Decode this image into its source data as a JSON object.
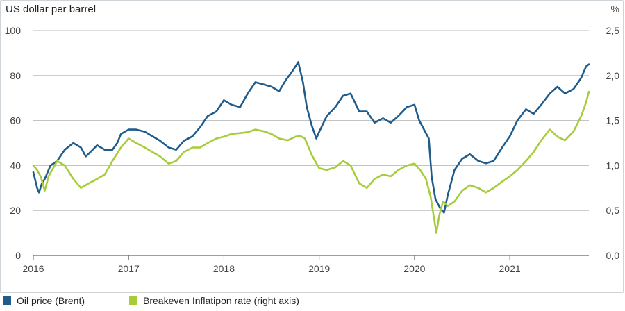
{
  "chart_data": {
    "type": "line",
    "title": "",
    "ylabel_left": "US dollar per barrel",
    "ylabel_right": "%",
    "xlim": [
      2016.0,
      2021.83
    ],
    "ylim_left": [
      0,
      100
    ],
    "ylim_right": [
      0,
      2.5
    ],
    "x_ticks": [
      "2016",
      "2017",
      "2018",
      "2019",
      "2020",
      "2021"
    ],
    "y_ticks_left": [
      "0",
      "20",
      "40",
      "60",
      "80",
      "100"
    ],
    "y_ticks_right": [
      "0,0",
      "0,5",
      "1,0",
      "1,5",
      "2,0",
      "2,5"
    ],
    "grid": true,
    "legend_position": "bottom",
    "series": [
      {
        "name": "Oil price (Brent)",
        "axis": "left",
        "color": "#1f5c8b",
        "points": [
          [
            2016.0,
            37
          ],
          [
            2016.04,
            30
          ],
          [
            2016.06,
            28
          ],
          [
            2016.09,
            32
          ],
          [
            2016.12,
            34
          ],
          [
            2016.18,
            40
          ],
          [
            2016.25,
            42
          ],
          [
            2016.33,
            47
          ],
          [
            2016.42,
            50
          ],
          [
            2016.5,
            48
          ],
          [
            2016.55,
            44
          ],
          [
            2016.6,
            46
          ],
          [
            2016.67,
            49
          ],
          [
            2016.75,
            47
          ],
          [
            2016.83,
            47
          ],
          [
            2016.88,
            50
          ],
          [
            2016.92,
            54
          ],
          [
            2017.0,
            56
          ],
          [
            2017.08,
            56
          ],
          [
            2017.17,
            55
          ],
          [
            2017.25,
            53
          ],
          [
            2017.33,
            51
          ],
          [
            2017.42,
            48
          ],
          [
            2017.5,
            47
          ],
          [
            2017.58,
            51
          ],
          [
            2017.67,
            53
          ],
          [
            2017.75,
            57
          ],
          [
            2017.83,
            62
          ],
          [
            2017.92,
            64
          ],
          [
            2018.0,
            69
          ],
          [
            2018.08,
            67
          ],
          [
            2018.17,
            66
          ],
          [
            2018.25,
            72
          ],
          [
            2018.33,
            77
          ],
          [
            2018.42,
            76
          ],
          [
            2018.5,
            75
          ],
          [
            2018.58,
            73
          ],
          [
            2018.65,
            78
          ],
          [
            2018.72,
            82
          ],
          [
            2018.78,
            86
          ],
          [
            2018.83,
            77
          ],
          [
            2018.87,
            66
          ],
          [
            2018.92,
            58
          ],
          [
            2018.97,
            52
          ],
          [
            2019.0,
            55
          ],
          [
            2019.08,
            62
          ],
          [
            2019.17,
            66
          ],
          [
            2019.25,
            71
          ],
          [
            2019.33,
            72
          ],
          [
            2019.42,
            64
          ],
          [
            2019.5,
            64
          ],
          [
            2019.58,
            59
          ],
          [
            2019.67,
            61
          ],
          [
            2019.75,
            59
          ],
          [
            2019.83,
            62
          ],
          [
            2019.92,
            66
          ],
          [
            2020.0,
            67
          ],
          [
            2020.05,
            60
          ],
          [
            2020.1,
            56
          ],
          [
            2020.15,
            52
          ],
          [
            2020.18,
            35
          ],
          [
            2020.22,
            25
          ],
          [
            2020.27,
            21
          ],
          [
            2020.31,
            19
          ],
          [
            2020.35,
            27
          ],
          [
            2020.42,
            38
          ],
          [
            2020.5,
            43
          ],
          [
            2020.58,
            45
          ],
          [
            2020.67,
            42
          ],
          [
            2020.75,
            41
          ],
          [
            2020.83,
            42
          ],
          [
            2020.92,
            48
          ],
          [
            2021.0,
            53
          ],
          [
            2021.08,
            60
          ],
          [
            2021.17,
            65
          ],
          [
            2021.25,
            63
          ],
          [
            2021.33,
            67
          ],
          [
            2021.42,
            72
          ],
          [
            2021.5,
            75
          ],
          [
            2021.58,
            72
          ],
          [
            2021.67,
            74
          ],
          [
            2021.75,
            79
          ],
          [
            2021.8,
            84
          ],
          [
            2021.83,
            85
          ]
        ]
      },
      {
        "name": "Breakeven Inflatipon rate (right axis)",
        "axis": "right",
        "color": "#a6cc3a",
        "points": [
          [
            2016.0,
            1.0
          ],
          [
            2016.04,
            0.95
          ],
          [
            2016.08,
            0.87
          ],
          [
            2016.12,
            0.72
          ],
          [
            2016.16,
            0.88
          ],
          [
            2016.25,
            1.05
          ],
          [
            2016.33,
            1.0
          ],
          [
            2016.42,
            0.85
          ],
          [
            2016.5,
            0.75
          ],
          [
            2016.58,
            0.8
          ],
          [
            2016.67,
            0.85
          ],
          [
            2016.75,
            0.9
          ],
          [
            2016.83,
            1.05
          ],
          [
            2016.92,
            1.2
          ],
          [
            2017.0,
            1.3
          ],
          [
            2017.08,
            1.25
          ],
          [
            2017.17,
            1.2
          ],
          [
            2017.25,
            1.15
          ],
          [
            2017.33,
            1.1
          ],
          [
            2017.42,
            1.02
          ],
          [
            2017.5,
            1.05
          ],
          [
            2017.58,
            1.15
          ],
          [
            2017.67,
            1.2
          ],
          [
            2017.75,
            1.2
          ],
          [
            2017.83,
            1.25
          ],
          [
            2017.92,
            1.3
          ],
          [
            2018.0,
            1.32
          ],
          [
            2018.08,
            1.35
          ],
          [
            2018.17,
            1.36
          ],
          [
            2018.25,
            1.37
          ],
          [
            2018.33,
            1.4
          ],
          [
            2018.42,
            1.38
          ],
          [
            2018.5,
            1.35
          ],
          [
            2018.58,
            1.3
          ],
          [
            2018.67,
            1.28
          ],
          [
            2018.75,
            1.32
          ],
          [
            2018.8,
            1.33
          ],
          [
            2018.85,
            1.3
          ],
          [
            2018.92,
            1.12
          ],
          [
            2019.0,
            0.97
          ],
          [
            2019.08,
            0.95
          ],
          [
            2019.17,
            0.98
          ],
          [
            2019.25,
            1.05
          ],
          [
            2019.33,
            1.0
          ],
          [
            2019.42,
            0.8
          ],
          [
            2019.5,
            0.75
          ],
          [
            2019.58,
            0.85
          ],
          [
            2019.67,
            0.9
          ],
          [
            2019.75,
            0.88
          ],
          [
            2019.83,
            0.95
          ],
          [
            2019.92,
            1.0
          ],
          [
            2020.0,
            1.02
          ],
          [
            2020.06,
            0.95
          ],
          [
            2020.12,
            0.85
          ],
          [
            2020.17,
            0.65
          ],
          [
            2020.2,
            0.45
          ],
          [
            2020.23,
            0.25
          ],
          [
            2020.26,
            0.45
          ],
          [
            2020.3,
            0.6
          ],
          [
            2020.35,
            0.55
          ],
          [
            2020.42,
            0.6
          ],
          [
            2020.5,
            0.72
          ],
          [
            2020.58,
            0.78
          ],
          [
            2020.67,
            0.75
          ],
          [
            2020.75,
            0.7
          ],
          [
            2020.83,
            0.75
          ],
          [
            2020.92,
            0.82
          ],
          [
            2021.0,
            0.88
          ],
          [
            2021.08,
            0.95
          ],
          [
            2021.17,
            1.05
          ],
          [
            2021.25,
            1.15
          ],
          [
            2021.33,
            1.28
          ],
          [
            2021.42,
            1.4
          ],
          [
            2021.5,
            1.32
          ],
          [
            2021.58,
            1.28
          ],
          [
            2021.67,
            1.38
          ],
          [
            2021.75,
            1.55
          ],
          [
            2021.8,
            1.7
          ],
          [
            2021.83,
            1.82
          ]
        ]
      }
    ]
  },
  "legend": {
    "items": [
      {
        "label": "Oil price (Brent)",
        "color": "#1f5c8b"
      },
      {
        "label": "Breakeven Inflatipon rate (right axis)",
        "color": "#a6cc3a"
      }
    ]
  },
  "colors": {
    "grid": "#b8bcbf",
    "axis": "#666666",
    "tick_text": "#444444"
  }
}
